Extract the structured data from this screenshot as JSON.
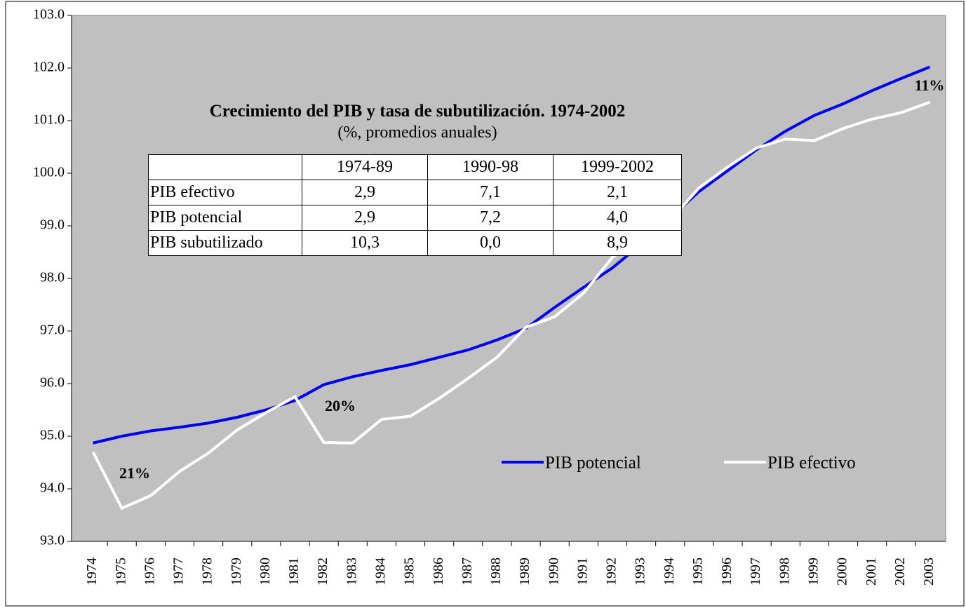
{
  "chart_data": {
    "type": "line",
    "categories": [
      "1974",
      "1975",
      "1976",
      "1977",
      "1978",
      "1979",
      "1980",
      "1981",
      "1982",
      "1983",
      "1984",
      "1985",
      "1986",
      "1987",
      "1988",
      "1989",
      "1990",
      "1991",
      "1992",
      "1993",
      "1994",
      "1995",
      "1996",
      "1997",
      "1998",
      "1999",
      "2000",
      "2001",
      "2002",
      "2003"
    ],
    "series": [
      {
        "name": "PIB potencial",
        "color": "#0000ee",
        "values": [
          94.87,
          95.0,
          95.1,
          95.17,
          95.25,
          95.36,
          95.5,
          95.68,
          95.98,
          96.13,
          96.25,
          96.36,
          96.5,
          96.64,
          96.83,
          97.05,
          97.45,
          97.83,
          98.2,
          98.65,
          99.15,
          99.65,
          100.05,
          100.45,
          100.8,
          101.1,
          101.32,
          101.57,
          101.8,
          102.02
        ]
      },
      {
        "name": "PIB efectivo",
        "color": "#ffffff",
        "values": [
          94.7,
          93.63,
          93.87,
          94.33,
          94.68,
          95.12,
          95.45,
          95.75,
          94.88,
          94.87,
          95.32,
          95.38,
          95.72,
          96.1,
          96.5,
          97.07,
          97.27,
          97.72,
          98.4,
          98.78,
          99.1,
          99.72,
          100.12,
          100.48,
          100.65,
          100.62,
          100.85,
          101.03,
          101.15,
          101.35
        ]
      }
    ],
    "ylim": [
      93,
      103
    ],
    "yticks": [
      {
        "value": 93,
        "label": "93.0"
      },
      {
        "value": 94,
        "label": "94.0"
      },
      {
        "value": 95,
        "label": "95.0"
      },
      {
        "value": 96,
        "label": "96.0"
      },
      {
        "value": 97,
        "label": "97.0"
      },
      {
        "value": 98,
        "label": "98.0"
      },
      {
        "value": 99,
        "label": "99.0"
      },
      {
        "value": 100,
        "label": "100.0"
      },
      {
        "value": 101,
        "label": "101.0"
      },
      {
        "value": 102,
        "label": "102.0"
      },
      {
        "value": 103,
        "label": "103.0"
      }
    ],
    "grid": false,
    "annotations": [
      "21%",
      "20%",
      "11%"
    ],
    "inset_table": {
      "title": "Crecimiento del PIB y tasa de subutilización. 1974-2002",
      "subtitle": "(%, promedios anuales)",
      "columns": [
        "1974-89",
        "1990-98",
        "1999-2002"
      ],
      "rows": [
        {
          "label": "PIB efectivo",
          "cells": [
            "2,9",
            "7,1",
            "2,1"
          ]
        },
        {
          "label": "PIB potencial",
          "cells": [
            "2,9",
            "7,2",
            "4,0"
          ]
        },
        {
          "label": "PIB subutilizado",
          "cells": [
            "10,3",
            "0,0",
            "8,9"
          ]
        }
      ]
    }
  }
}
